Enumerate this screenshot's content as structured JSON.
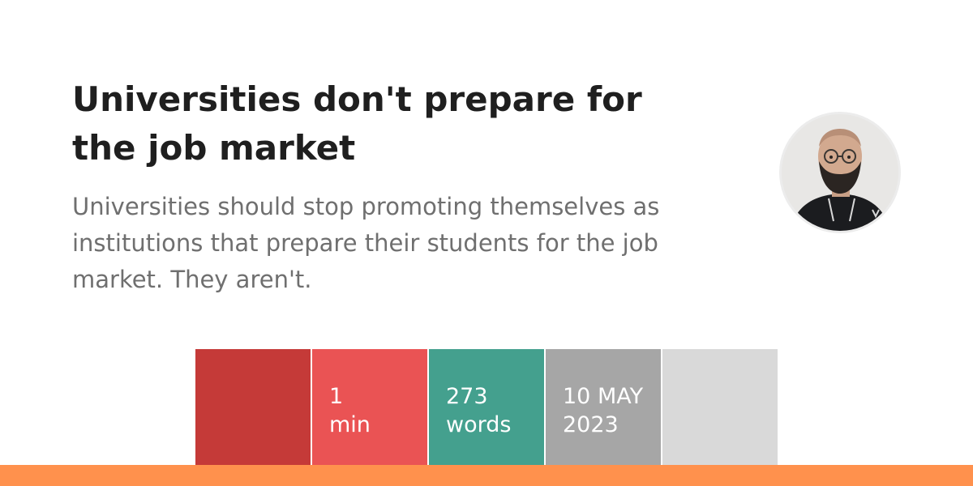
{
  "article": {
    "title": "Universities don't prepare for the job market",
    "description": "Universities should stop promoting themselves as institutions that prepare their students for the job market. They aren't."
  },
  "stats": {
    "reading_time_value": "1",
    "reading_time_unit": "min",
    "word_count_value": "273",
    "word_count_unit": "words",
    "date_day_month": "10 MAY",
    "date_year": "2023"
  },
  "colors": {
    "block_dark_red": "#c53a38",
    "block_red": "#ea5354",
    "block_teal": "#44a08e",
    "block_gray": "#a6a6a6",
    "block_light_gray": "#d9d9d9",
    "accent_orange": "#ff914d",
    "title_text": "#1f1f1f",
    "description_text": "#6f6f6f"
  },
  "avatar": {
    "icon": "author-avatar-icon"
  }
}
